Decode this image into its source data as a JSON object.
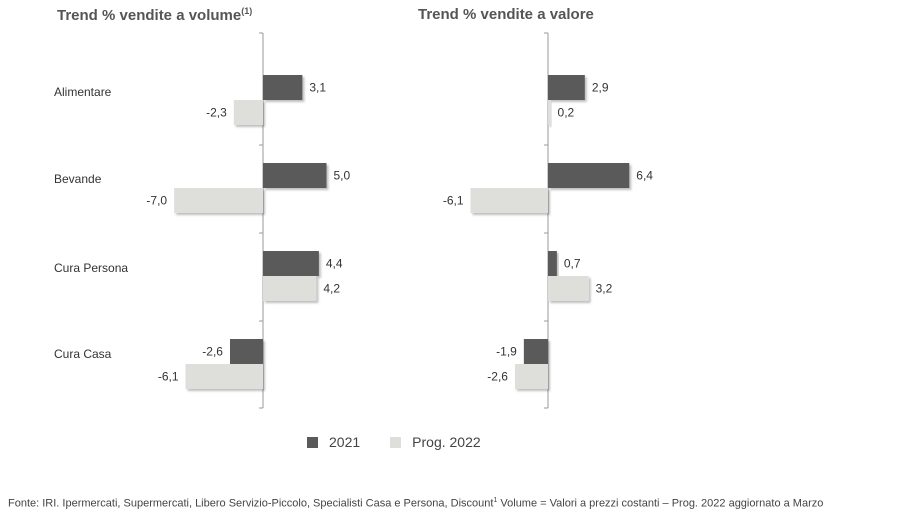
{
  "titles": {
    "left": "Trend % vendite a volume",
    "left_sup": "(1)",
    "right": "Trend % vendite a valore"
  },
  "colors": {
    "series_2021": "#5a5a5a",
    "series_prog2022": "#dededa",
    "axis": "#999999"
  },
  "chart_data": [
    {
      "type": "bar",
      "orientation": "horizontal",
      "title": "Trend % vendite a volume(1)",
      "categories": [
        "Alimentare",
        "Bevande",
        "Cura Persona",
        "Cura Casa"
      ],
      "series": [
        {
          "name": "2021",
          "values": [
            3.1,
            5.0,
            4.4,
            -2.6
          ],
          "labels": [
            "3,1",
            "5,0",
            "4,4",
            "-2,6"
          ]
        },
        {
          "name": "Prog. 2022",
          "values": [
            -2.3,
            -7.0,
            4.2,
            -6.1
          ],
          "labels": [
            "-2,3",
            "-7,0",
            "4,2",
            "-6,1"
          ]
        }
      ],
      "grid": false
    },
    {
      "type": "bar",
      "orientation": "horizontal",
      "title": "Trend % vendite a valore",
      "categories": [
        "Alimentare",
        "Bevande",
        "Cura Persona",
        "Cura Casa"
      ],
      "series": [
        {
          "name": "2021",
          "values": [
            2.9,
            6.4,
            0.7,
            -1.9
          ],
          "labels": [
            "2,9",
            "6,4",
            "0,7",
            "-1,9"
          ]
        },
        {
          "name": "Prog. 2022",
          "values": [
            0.2,
            -6.1,
            3.2,
            -2.6
          ],
          "labels": [
            "0,2",
            "-6,1",
            "3,2",
            "-2,6"
          ]
        }
      ],
      "grid": false
    }
  ],
  "legend": {
    "position": "bottom",
    "items": [
      {
        "label": "2021"
      },
      {
        "label": "Prog. 2022"
      }
    ]
  },
  "footnote": {
    "text": "Fonte: IRI. Ipermercati, Supermercati, Libero Servizio-Piccolo, Specialisti Casa e Persona, Discount",
    "sup": "1",
    "text2": " Volume = Valori a prezzi costanti – Prog. 2022 aggiornato a Marzo"
  }
}
